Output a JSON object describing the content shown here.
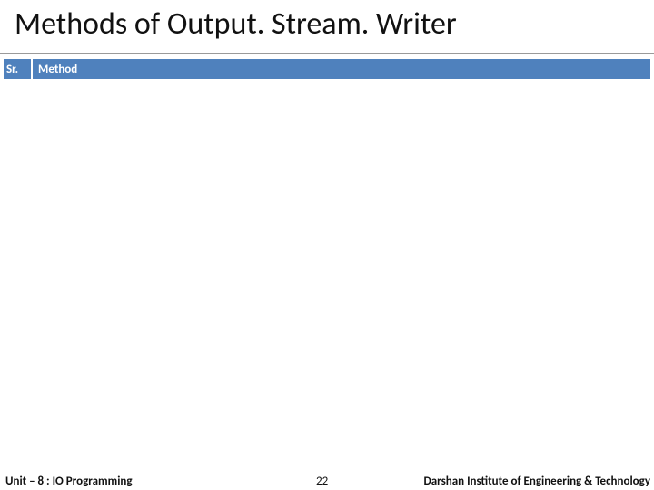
{
  "slide": {
    "title": "Methods of Output. Stream. Writer",
    "table_header": {
      "sr": "Sr.",
      "method": "Method"
    },
    "footer": {
      "left": "Unit – 8 : IO Programming",
      "page": "22",
      "right": "Darshan Institute of Engineering & Technology"
    },
    "colors": {
      "header_bg": "#4f81bd",
      "header_text": "#ffffff",
      "underline": "#9a9a9a",
      "text": "#111111",
      "background": "#ffffff"
    },
    "title_fontsize": 34,
    "header_fontsize": 13,
    "footer_fontsize": 13
  }
}
